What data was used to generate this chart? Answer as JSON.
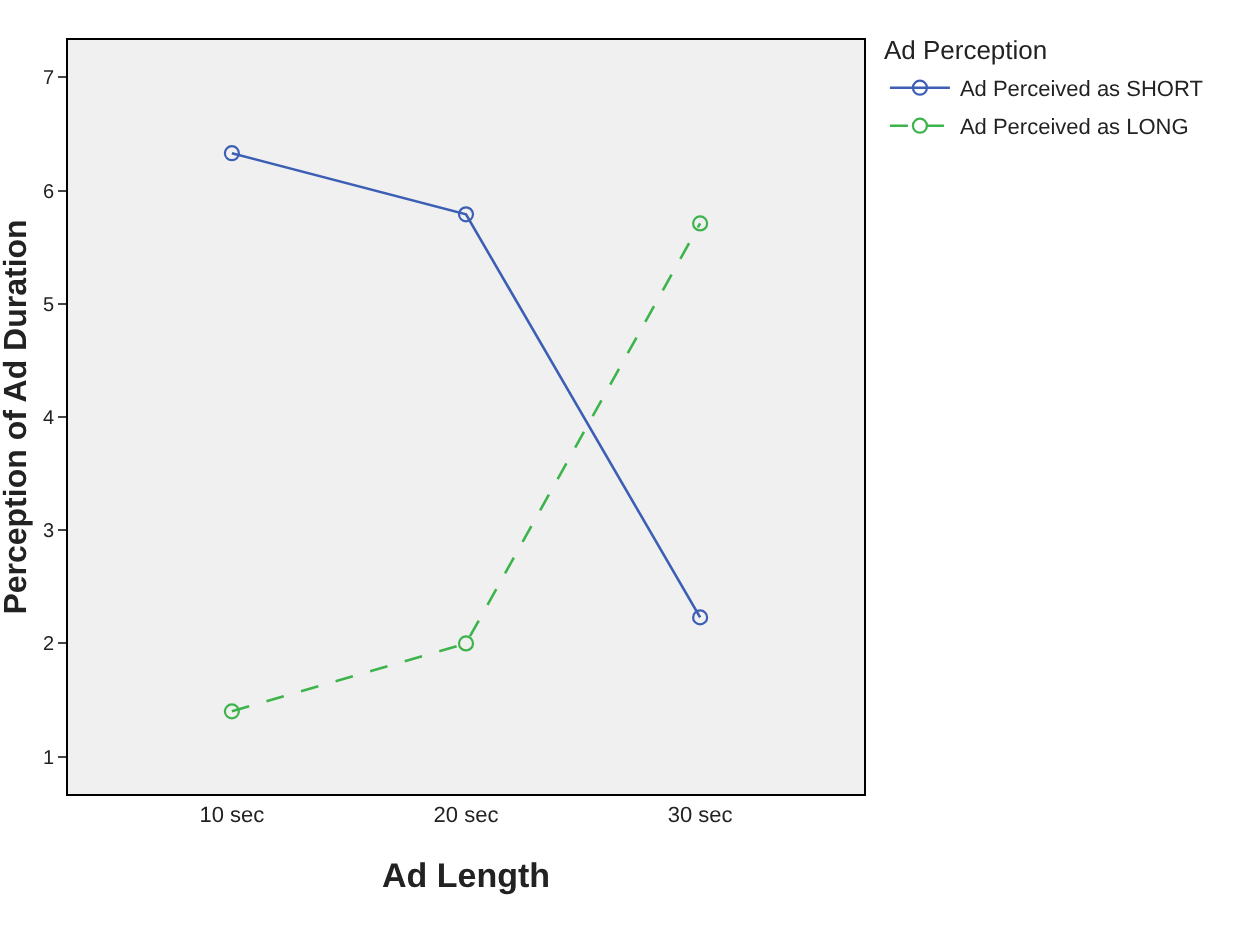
{
  "chart_data": {
    "type": "line",
    "xlabel": "Ad Length",
    "ylabel": "Perception of Ad Duration",
    "legend_title": "Ad Perception",
    "categories": [
      "10 sec",
      "20 sec",
      "30 sec"
    ],
    "series": [
      {
        "name": "Ad Perceived as SHORT",
        "color": "#3c5fb5",
        "values": [
          6.33,
          5.79,
          2.23
        ],
        "line_style": "solid"
      },
      {
        "name": "Ad Perceived as LONG",
        "color": "#3cb44b",
        "values": [
          1.4,
          2.0,
          5.71
        ],
        "line_style": "dashed"
      }
    ],
    "ylim": [
      0.67,
      7.33
    ],
    "yticks": [
      1,
      2,
      3,
      4,
      5,
      6,
      7
    ],
    "grid": false,
    "legend": "top right",
    "marker": "circle"
  }
}
